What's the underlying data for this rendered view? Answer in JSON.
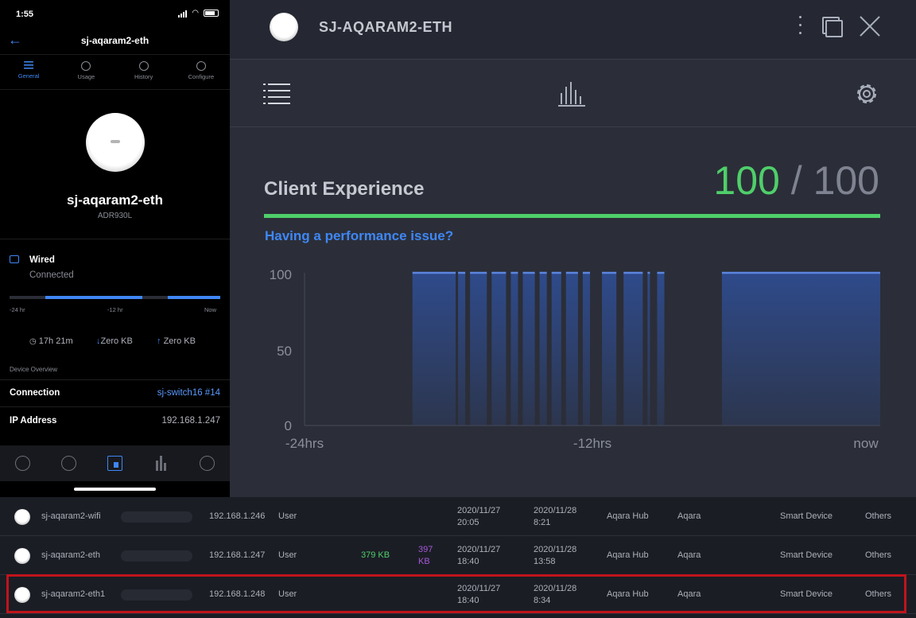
{
  "phone": {
    "status_time": "1:55",
    "header_title": "sj-aqaram2-eth",
    "tabs": [
      {
        "label": "General",
        "active": true
      },
      {
        "label": "Usage",
        "active": false
      },
      {
        "label": "History",
        "active": false
      },
      {
        "label": "Configure",
        "active": false
      }
    ],
    "device_name": "sj-aqaram2-eth",
    "device_model": "ADR930L",
    "connection_type": "Wired",
    "connection_status": "Connected",
    "uptime_ticks": [
      "-24 hr",
      "-12 hr",
      "Now"
    ],
    "uptime_segments": [
      {
        "from": 0.17,
        "to": 0.63
      },
      {
        "from": 0.75,
        "to": 1.0
      }
    ],
    "uptime": "17h 21m",
    "download": "Zero KB",
    "upload": "Zero KB",
    "overview_label": "Device Overview",
    "overview": [
      {
        "key": "Connection",
        "value": "sj-switch16 #14",
        "link": true
      },
      {
        "key": "IP Address",
        "value": "192.168.1.247",
        "link": false
      }
    ]
  },
  "detail": {
    "title": "SJ-AQARAM2-ETH",
    "client_experience_label": "Client Experience",
    "score": "100",
    "score_separator": "/",
    "score_max": "100",
    "performance_link": "Having a performance issue?"
  },
  "chart_data": {
    "type": "area",
    "ylim": [
      0,
      100
    ],
    "yticks": [
      "100",
      "50",
      "0"
    ],
    "xticks": [
      "-24hrs",
      "-12hrs",
      "now"
    ],
    "x_unit": "hours relative to now",
    "xlim": [
      -24,
      0
    ],
    "series": [
      {
        "segments": [
          {
            "x0": -19.5,
            "x1": -17.7,
            "y": 100
          },
          {
            "x0": -17.6,
            "x1": -17.3,
            "y": 100
          },
          {
            "x0": -17.1,
            "x1": -16.4,
            "y": 100
          },
          {
            "x0": -16.2,
            "x1": -15.6,
            "y": 100
          },
          {
            "x0": -15.4,
            "x1": -15.1,
            "y": 100
          },
          {
            "x0": -14.9,
            "x1": -14.4,
            "y": 100
          },
          {
            "x0": -14.2,
            "x1": -13.9,
            "y": 100
          },
          {
            "x0": -13.7,
            "x1": -13.3,
            "y": 100
          },
          {
            "x0": -13.1,
            "x1": -12.6,
            "y": 100
          },
          {
            "x0": -12.4,
            "x1": -12.1,
            "y": 100
          },
          {
            "x0": -11.6,
            "x1": -11.0,
            "y": 100
          },
          {
            "x0": -10.7,
            "x1": -9.9,
            "y": 100
          },
          {
            "x0": -9.7,
            "x1": -9.6,
            "y": 100
          },
          {
            "x0": -9.3,
            "x1": -9.0,
            "y": 100
          },
          {
            "x0": -6.6,
            "x1": 0.0,
            "y": 100
          }
        ]
      }
    ],
    "grid": false
  },
  "table": {
    "rows": [
      {
        "name": "sj-aqaram2-wifi",
        "ip": "192.168.1.246",
        "network": "User",
        "down": "",
        "up": "",
        "first_seen": [
          "2020/11/27",
          "20:05"
        ],
        "last_seen": [
          "2020/11/28",
          "8:21"
        ],
        "vendor": "Aqara Hub",
        "brand": "Aqara",
        "type": "Smart Device",
        "category": "Others",
        "highlighted": false
      },
      {
        "name": "sj-aqaram2-eth",
        "ip": "192.168.1.247",
        "network": "User",
        "down": "379 KB",
        "up": "397 KB",
        "first_seen": [
          "2020/11/27",
          "18:40"
        ],
        "last_seen": [
          "2020/11/28",
          "13:58"
        ],
        "vendor": "Aqara Hub",
        "brand": "Aqara",
        "type": "Smart Device",
        "category": "Others",
        "highlighted": false
      },
      {
        "name": "sj-aqaram2-eth1",
        "ip": "192.168.1.248",
        "network": "User",
        "down": "",
        "up": "",
        "first_seen": [
          "2020/11/27",
          "18:40"
        ],
        "last_seen": [
          "2020/11/28",
          "8:34"
        ],
        "vendor": "Aqara Hub",
        "brand": "Aqara",
        "type": "Smart Device",
        "category": "Others",
        "highlighted": true
      }
    ]
  },
  "colors": {
    "accent": "#3f87f5",
    "score_green": "#4fcf6a",
    "upload_purple": "#a658d6",
    "highlight_red": "#c0141b"
  }
}
